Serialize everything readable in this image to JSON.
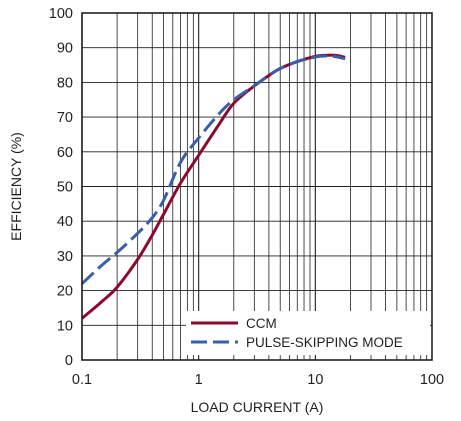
{
  "chart_data": {
    "type": "line",
    "xlabel": "LOAD CURRENT (A)",
    "ylabel": "EFFICIENCY (%)",
    "x_scale": "log",
    "xlim": [
      0.1,
      100
    ],
    "ylim": [
      0,
      100
    ],
    "x_ticks": [
      0.1,
      1,
      10,
      100
    ],
    "x_tick_labels": [
      "0.1",
      "1",
      "10",
      "100"
    ],
    "y_ticks": [
      0,
      10,
      20,
      30,
      40,
      50,
      60,
      70,
      80,
      90,
      100
    ],
    "y_tick_labels": [
      "0",
      "10",
      "20",
      "30",
      "40",
      "50",
      "60",
      "70",
      "80",
      "90",
      "100"
    ],
    "grid": true,
    "legend_position": "bottom-right",
    "series": [
      {
        "name": "CCM",
        "color": "#8b0a2e",
        "dash": "solid",
        "x": [
          0.1,
          0.15,
          0.2,
          0.3,
          0.4,
          0.5,
          0.7,
          1.0,
          1.5,
          2.0,
          3.0,
          4.0,
          5.0,
          7.0,
          10.0,
          12.0,
          15.0,
          18.0
        ],
        "y": [
          12,
          17,
          21,
          29,
          36,
          42,
          51,
          59,
          68,
          74,
          79,
          82,
          84,
          86,
          87.5,
          87.8,
          87.8,
          87.2
        ]
      },
      {
        "name": "PULSE-SKIPPING MODE",
        "color": "#3a5fa8",
        "dash": "dashed",
        "x": [
          0.1,
          0.15,
          0.2,
          0.3,
          0.4,
          0.5,
          0.7,
          1.0,
          1.5,
          2.0,
          3.0,
          4.0,
          5.0,
          7.0,
          10.0,
          12.0,
          15.0,
          18.0
        ],
        "y": [
          22,
          27.5,
          31,
          36.5,
          41,
          46,
          57,
          64,
          71,
          75,
          79,
          82,
          84,
          86,
          87.3,
          87.6,
          87.4,
          86.8
        ]
      }
    ]
  }
}
